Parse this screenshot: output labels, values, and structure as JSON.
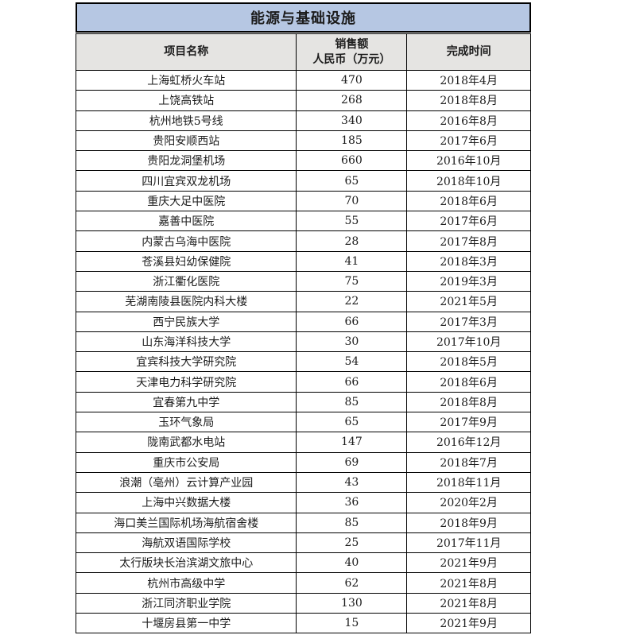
{
  "colors": {
    "title_background": "#b6c7e3",
    "header_background": "#e5e4e2",
    "border": "#000000",
    "text": "#1c1c1c"
  },
  "table": {
    "title": "能源与基础设施",
    "columns": [
      {
        "label": "项目名称"
      },
      {
        "label": "销售额",
        "sublabel": "人民币（万元）"
      },
      {
        "label": "完成时间"
      }
    ],
    "rows": [
      [
        "上海虹桥火车站",
        "470",
        "2018年4月"
      ],
      [
        "上饶高铁站",
        "268",
        "2018年8月"
      ],
      [
        "杭州地铁5号线",
        "340",
        "2016年8月"
      ],
      [
        "贵阳安顺西站",
        "185",
        "2017年6月"
      ],
      [
        "贵阳龙洞堡机场",
        "660",
        "2016年10月"
      ],
      [
        "四川宜宾双龙机场",
        "65",
        "2018年10月"
      ],
      [
        "重庆大足中医院",
        "70",
        "2018年6月"
      ],
      [
        "嘉善中医院",
        "55",
        "2017年6月"
      ],
      [
        "内蒙古乌海中医院",
        "28",
        "2017年8月"
      ],
      [
        "苍溪县妇幼保健院",
        "41",
        "2018年3月"
      ],
      [
        "浙江衢化医院",
        "75",
        "2019年3月"
      ],
      [
        "芜湖南陵县医院内科大楼",
        "22",
        "2021年5月"
      ],
      [
        "西宁民族大学",
        "66",
        "2017年3月"
      ],
      [
        "山东海洋科技大学",
        "30",
        "2017年10月"
      ],
      [
        "宜宾科技大学研究院",
        "54",
        "2018年5月"
      ],
      [
        "天津电力科学研究院",
        "66",
        "2018年6月"
      ],
      [
        "宜春第九中学",
        "85",
        "2018年8月"
      ],
      [
        "玉环气象局",
        "65",
        "2017年9月"
      ],
      [
        "陇南武都水电站",
        "147",
        "2016年12月"
      ],
      [
        "重庆市公安局",
        "69",
        "2018年7月"
      ],
      [
        "浪潮（亳州）云计算产业园",
        "43",
        "2018年11月"
      ],
      [
        "上海中兴数据大楼",
        "36",
        "2020年2月"
      ],
      [
        "海口美兰国际机场海航宿舍楼",
        "85",
        "2018年9月"
      ],
      [
        "海航双语国际学校",
        "25",
        "2017年11月"
      ],
      [
        "太行版块长治滨湖文旅中心",
        "40",
        "2021年9月"
      ],
      [
        "杭州市高级中学",
        "62",
        "2021年8月"
      ],
      [
        "浙江同济职业学院",
        "130",
        "2021年8月"
      ],
      [
        "十堰房县第一中学",
        "15",
        "2021年9月"
      ]
    ]
  }
}
